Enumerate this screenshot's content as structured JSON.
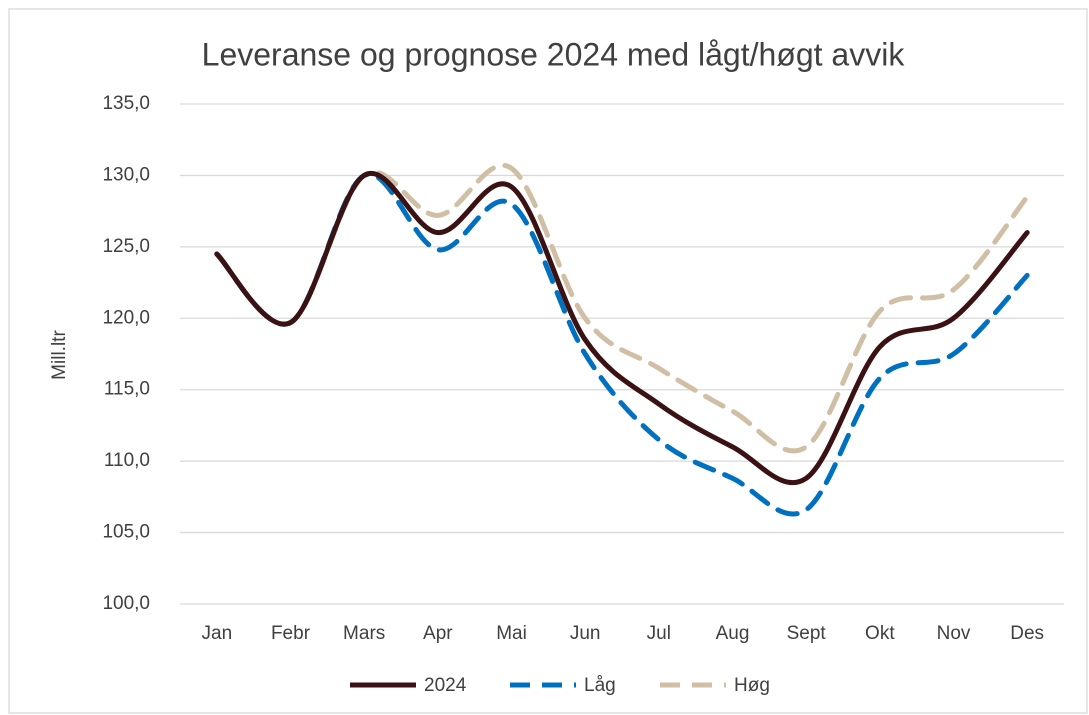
{
  "chart_data": {
    "type": "line",
    "title": "Leveranse og prognose 2024 med lågt/høgt avvik",
    "y_label": "Mill.ltr",
    "categories": [
      "Jan",
      "Febr",
      "Mars",
      "Apr",
      "Mai",
      "Jun",
      "Jul",
      "Aug",
      "Sept",
      "Okt",
      "Nov",
      "Des"
    ],
    "series": [
      {
        "name": "2024",
        "color": "#3b1214",
        "dash": "solid",
        "values": [
          124.5,
          119.7,
          130.0,
          126.0,
          129.2,
          118.5,
          114.0,
          111.0,
          108.8,
          118.0,
          120.0,
          126.0
        ]
      },
      {
        "name": "Låg",
        "color": "#0070c0",
        "dash": "dashed",
        "values": [
          124.5,
          119.7,
          130.0,
          124.8,
          128.0,
          117.5,
          111.5,
          108.8,
          106.6,
          115.8,
          117.5,
          123.0
        ]
      },
      {
        "name": "Høg",
        "color": "#d0bfa5",
        "dash": "dashed",
        "values": [
          124.5,
          119.7,
          130.0,
          127.2,
          130.5,
          120.0,
          116.5,
          113.5,
          111.0,
          120.5,
          122.0,
          128.5
        ]
      }
    ],
    "ylim": [
      100,
      135
    ],
    "yticks": [
      {
        "value": 100,
        "label": "100,0"
      },
      {
        "value": 105,
        "label": "105,0"
      },
      {
        "value": 110,
        "label": "110,0"
      },
      {
        "value": 115,
        "label": "115,0"
      },
      {
        "value": 120,
        "label": "120,0"
      },
      {
        "value": 125,
        "label": "125,0"
      },
      {
        "value": 130,
        "label": "130,0"
      },
      {
        "value": 135,
        "label": "135,0"
      }
    ],
    "grid": true,
    "legend": "bottom"
  }
}
